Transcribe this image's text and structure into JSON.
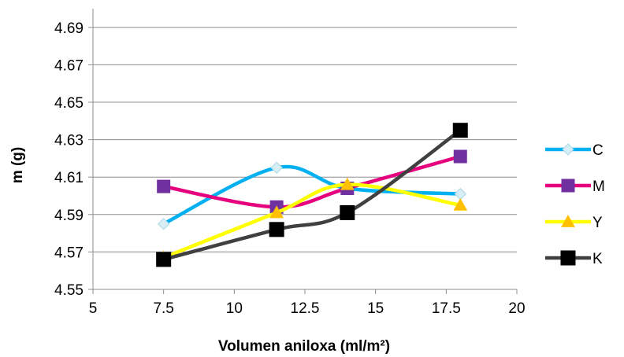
{
  "chart_data": {
    "type": "line",
    "smooth": true,
    "title": "",
    "xlabel": "Volumen aniloxa (ml/m²)",
    "ylabel": "m (g)",
    "xlim": [
      5,
      20
    ],
    "ylim": [
      4.55,
      4.7
    ],
    "x_ticks": [
      5,
      7.5,
      10,
      12.5,
      15,
      17.5,
      20
    ],
    "x_tick_labels": [
      "5",
      "7.5",
      "10",
      "12.5",
      "15",
      "17.5",
      "20"
    ],
    "y_ticks": [
      4.55,
      4.57,
      4.59,
      4.61,
      4.63,
      4.65,
      4.67,
      4.69
    ],
    "y_tick_labels": [
      "4.55",
      "4.57",
      "4.59",
      "4.61",
      "4.63",
      "4.65",
      "4.67",
      "4.69"
    ],
    "grid": "horizontal",
    "legend_position": "right",
    "x": [
      7.5,
      11.5,
      14,
      18
    ],
    "series": [
      {
        "name": "C",
        "color": "#00B0F0",
        "marker": "diamond",
        "marker_fill": "#D6EEF4",
        "marker_stroke": "#A9D6E4",
        "values": [
          4.585,
          4.615,
          4.604,
          4.601
        ]
      },
      {
        "name": "M",
        "color": "#E6007E",
        "marker": "square",
        "marker_fill": "#7030A0",
        "marker_stroke": "#7030A0",
        "values": [
          4.605,
          4.594,
          4.604,
          4.621
        ]
      },
      {
        "name": "Y",
        "color": "#FFFF00",
        "marker": "triangle",
        "marker_fill": "#FFC000",
        "marker_stroke": "#FFC000",
        "values": [
          4.567,
          4.591,
          4.606,
          4.595
        ]
      },
      {
        "name": "K",
        "color": "#404040",
        "marker": "square",
        "marker_fill": "#000000",
        "marker_stroke": "#000000",
        "values": [
          4.566,
          4.582,
          4.591,
          4.635
        ]
      }
    ]
  }
}
